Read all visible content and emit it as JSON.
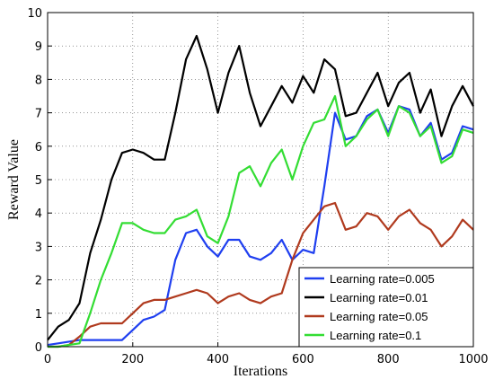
{
  "chart_data": {
    "type": "line",
    "x_label": "Iterations",
    "y_label": "Reward Value",
    "x": [
      0,
      25,
      50,
      75,
      100,
      125,
      150,
      175,
      200,
      225,
      250,
      275,
      300,
      325,
      350,
      375,
      400,
      425,
      450,
      475,
      500,
      525,
      550,
      575,
      600,
      625,
      650,
      675,
      700,
      725,
      750,
      775,
      800,
      825,
      850,
      875,
      900,
      925,
      950,
      975,
      1000
    ],
    "series": [
      {
        "name": "Learning rate=0.005",
        "color": "#1f3ff0",
        "values": [
          0.05,
          0.1,
          0.15,
          0.2,
          0.2,
          0.2,
          0.2,
          0.2,
          0.5,
          0.8,
          0.9,
          1.1,
          2.6,
          3.4,
          3.5,
          3.0,
          2.7,
          3.2,
          3.2,
          2.7,
          2.6,
          2.8,
          3.2,
          2.6,
          2.9,
          2.8,
          4.8,
          7.0,
          6.2,
          6.3,
          6.9,
          7.1,
          6.4,
          7.2,
          7.1,
          6.3,
          6.7,
          5.6,
          5.8,
          6.6,
          6.5
        ]
      },
      {
        "name": "Learning rate=0.01",
        "color": "#000000",
        "values": [
          0.2,
          0.6,
          0.8,
          1.3,
          2.8,
          3.8,
          5.0,
          5.8,
          5.9,
          5.8,
          5.6,
          5.6,
          7.0,
          8.6,
          9.3,
          8.3,
          7.0,
          8.2,
          9.0,
          7.6,
          6.6,
          7.2,
          7.8,
          7.3,
          8.1,
          7.6,
          8.6,
          8.3,
          6.9,
          7.0,
          7.6,
          8.2,
          7.2,
          7.9,
          8.2,
          7.0,
          7.7,
          6.3,
          7.2,
          7.8,
          7.2
        ]
      },
      {
        "name": "Learning rate=0.05",
        "color": "#b03a1e",
        "values": [
          0,
          0,
          0.05,
          0.3,
          0.6,
          0.7,
          0.7,
          0.7,
          1.0,
          1.3,
          1.4,
          1.4,
          1.5,
          1.6,
          1.7,
          1.6,
          1.3,
          1.5,
          1.6,
          1.4,
          1.3,
          1.5,
          1.6,
          2.6,
          3.4,
          3.8,
          4.2,
          4.3,
          3.5,
          3.6,
          4.0,
          3.9,
          3.5,
          3.9,
          4.1,
          3.7,
          3.5,
          3.0,
          3.3,
          3.8,
          3.5
        ]
      },
      {
        "name": "Learning rate=0.1",
        "color": "#33dd33",
        "values": [
          0,
          0,
          0.05,
          0.1,
          1.0,
          2.0,
          2.8,
          3.7,
          3.7,
          3.5,
          3.4,
          3.4,
          3.8,
          3.9,
          4.1,
          3.3,
          3.1,
          3.9,
          5.2,
          5.4,
          4.8,
          5.5,
          5.9,
          5.0,
          6.0,
          6.7,
          6.8,
          7.5,
          6.0,
          6.3,
          6.8,
          7.1,
          6.3,
          7.2,
          7.0,
          6.3,
          6.6,
          5.5,
          5.7,
          6.5,
          6.4
        ]
      }
    ],
    "xlim": [
      0,
      1000
    ],
    "xticks": [
      0,
      200,
      400,
      600,
      800,
      1000
    ],
    "ylim": [
      0,
      10
    ],
    "yticks": [
      0,
      1,
      2,
      3,
      4,
      5,
      6,
      7,
      8,
      9,
      10
    ],
    "grid": true,
    "legend": "lower right"
  }
}
